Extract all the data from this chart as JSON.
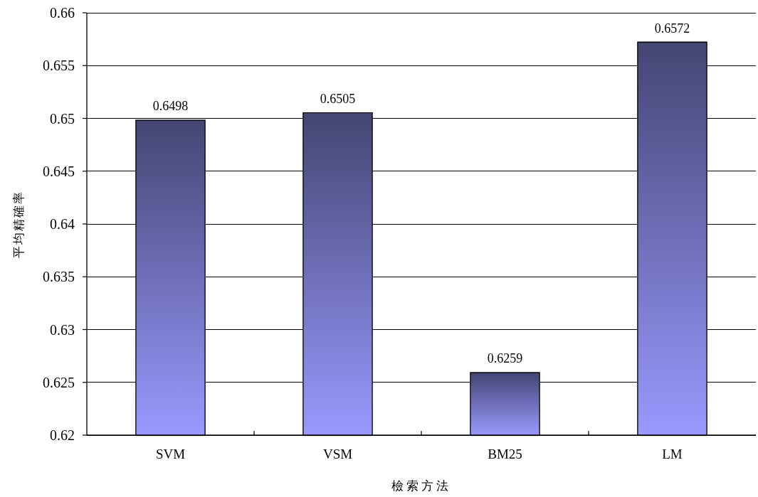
{
  "chart_data": {
    "type": "bar",
    "xlabel": "檢索方法",
    "ylabel": "平均精確率",
    "categories": [
      "SVM",
      "VSM",
      "BM25",
      "LM"
    ],
    "values": [
      0.6498,
      0.6505,
      0.6259,
      0.6572
    ],
    "color": "#9999ff",
    "ylim": [
      0.62,
      0.66
    ],
    "yticks": [
      0.62,
      0.625,
      0.63,
      0.635,
      0.64,
      0.645,
      0.65,
      0.655,
      0.66
    ],
    "grid": "y",
    "data_labels": true
  }
}
